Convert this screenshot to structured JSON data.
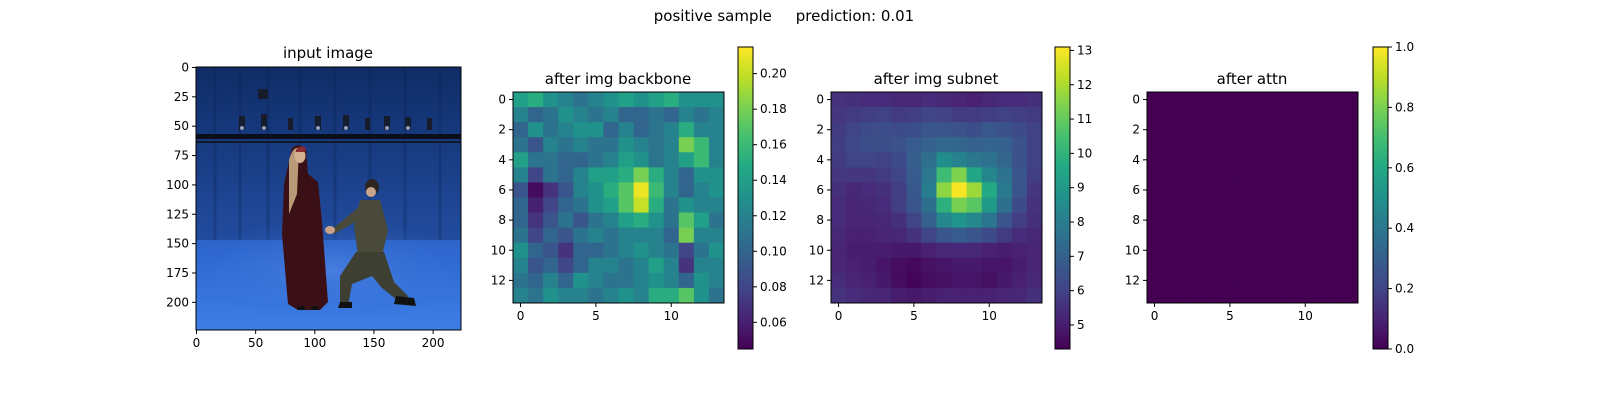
{
  "suptitle": "positive sample     prediction: 0.01",
  "colors": {
    "background": "#ffffff",
    "colormap": "viridis",
    "photo_studio_backdrop": "#1c3f8c",
    "photo_floor": "#2f6ed8"
  },
  "chart_data": [
    {
      "type": "image",
      "title": "input image",
      "image_description_icon": "photo-two-people-proposal",
      "xlim": [
        0,
        224
      ],
      "ylim": [
        224,
        0
      ],
      "xticks": [
        0,
        50,
        100,
        150,
        200
      ],
      "yticks": [
        0,
        25,
        50,
        75,
        100,
        125,
        150,
        175,
        200
      ]
    },
    {
      "type": "heatmap",
      "title": "after img backbone",
      "colormap": "viridis",
      "xticks": [
        0,
        5,
        10
      ],
      "yticks": [
        0,
        2,
        4,
        6,
        8,
        10,
        12
      ],
      "colorbar": {
        "range": [
          0.045,
          0.215
        ],
        "ticks": [
          0.06,
          0.08,
          0.1,
          0.12,
          0.14,
          0.16,
          0.18,
          0.2
        ],
        "labels": [
          "0.06",
          "0.08",
          "0.10",
          "0.12",
          "0.14",
          "0.16",
          "0.18",
          "0.20"
        ]
      },
      "values": [
        [
          0.14,
          0.15,
          0.13,
          0.12,
          0.11,
          0.12,
          0.13,
          0.14,
          0.13,
          0.14,
          0.15,
          0.13,
          0.13,
          0.13
        ],
        [
          0.12,
          0.1,
          0.11,
          0.13,
          0.12,
          0.11,
          0.12,
          0.1,
          0.1,
          0.11,
          0.1,
          0.12,
          0.11,
          0.12
        ],
        [
          0.1,
          0.13,
          0.11,
          0.12,
          0.13,
          0.13,
          0.1,
          0.12,
          0.1,
          0.11,
          0.12,
          0.15,
          0.12,
          0.12
        ],
        [
          0.11,
          0.09,
          0.12,
          0.11,
          0.12,
          0.11,
          0.11,
          0.13,
          0.12,
          0.11,
          0.12,
          0.18,
          0.16,
          0.12
        ],
        [
          0.14,
          0.11,
          0.11,
          0.1,
          0.1,
          0.11,
          0.12,
          0.14,
          0.13,
          0.11,
          0.12,
          0.14,
          0.16,
          0.12
        ],
        [
          0.12,
          0.08,
          0.11,
          0.1,
          0.12,
          0.14,
          0.14,
          0.15,
          0.18,
          0.15,
          0.12,
          0.1,
          0.13,
          0.13
        ],
        [
          0.09,
          0.05,
          0.07,
          0.09,
          0.12,
          0.13,
          0.15,
          0.17,
          0.21,
          0.16,
          0.12,
          0.1,
          0.12,
          0.13
        ],
        [
          0.1,
          0.06,
          0.08,
          0.1,
          0.11,
          0.13,
          0.14,
          0.17,
          0.2,
          0.15,
          0.11,
          0.13,
          0.12,
          0.12
        ],
        [
          0.1,
          0.07,
          0.09,
          0.11,
          0.09,
          0.11,
          0.12,
          0.14,
          0.15,
          0.13,
          0.11,
          0.17,
          0.14,
          0.11
        ],
        [
          0.11,
          0.08,
          0.1,
          0.09,
          0.11,
          0.12,
          0.11,
          0.12,
          0.12,
          0.12,
          0.1,
          0.18,
          0.12,
          0.12
        ],
        [
          0.13,
          0.1,
          0.09,
          0.07,
          0.1,
          0.1,
          0.11,
          0.12,
          0.13,
          0.12,
          0.11,
          0.08,
          0.11,
          0.13
        ],
        [
          0.12,
          0.09,
          0.1,
          0.08,
          0.1,
          0.12,
          0.12,
          0.11,
          0.12,
          0.14,
          0.12,
          0.07,
          0.12,
          0.12
        ],
        [
          0.11,
          0.1,
          0.12,
          0.1,
          0.13,
          0.12,
          0.11,
          0.11,
          0.12,
          0.13,
          0.12,
          0.1,
          0.13,
          0.12
        ],
        [
          0.12,
          0.11,
          0.13,
          0.12,
          0.12,
          0.11,
          0.12,
          0.13,
          0.12,
          0.15,
          0.15,
          0.17,
          0.13,
          0.11
        ]
      ]
    },
    {
      "type": "heatmap",
      "title": "after img subnet",
      "colormap": "viridis",
      "xticks": [
        0,
        5,
        10
      ],
      "yticks": [
        0,
        2,
        4,
        6,
        8,
        10,
        12
      ],
      "colorbar": {
        "range": [
          4.3,
          13.1
        ],
        "ticks": [
          5,
          6,
          7,
          8,
          9,
          10,
          11,
          12,
          13
        ],
        "labels": [
          "5",
          "6",
          "7",
          "8",
          "9",
          "10",
          "11",
          "12",
          "13"
        ]
      },
      "values": [
        [
          5.6,
          5.5,
          5.4,
          5.4,
          5.3,
          5.3,
          5.4,
          5.3,
          5.2,
          5.1,
          5.3,
          5.4,
          5.4,
          5.5
        ],
        [
          5.7,
          5.8,
          5.9,
          6.0,
          5.8,
          5.9,
          6.1,
          6.0,
          5.8,
          5.8,
          5.9,
          6.0,
          5.9,
          5.8
        ],
        [
          5.8,
          6.1,
          6.3,
          6.4,
          6.3,
          6.4,
          6.6,
          6.6,
          6.5,
          6.4,
          6.7,
          6.5,
          6.3,
          6.0
        ],
        [
          5.9,
          6.2,
          6.4,
          6.4,
          6.5,
          6.8,
          7.0,
          7.3,
          7.2,
          7.0,
          7.1,
          7.0,
          6.5,
          6.0
        ],
        [
          5.8,
          6.1,
          6.1,
          6.0,
          6.3,
          6.9,
          7.5,
          8.6,
          8.2,
          7.8,
          7.6,
          7.2,
          6.5,
          6.0
        ],
        [
          5.7,
          5.7,
          5.7,
          5.8,
          6.1,
          6.8,
          7.8,
          10.3,
          11.4,
          9.5,
          8.3,
          7.6,
          6.6,
          5.9
        ],
        [
          5.5,
          5.3,
          5.4,
          5.5,
          5.9,
          6.7,
          8.0,
          11.6,
          13.0,
          11.8,
          9.6,
          7.9,
          6.6,
          5.7
        ],
        [
          5.4,
          5.2,
          5.3,
          5.4,
          5.9,
          6.6,
          7.5,
          9.9,
          11.3,
          10.8,
          9.0,
          7.5,
          6.3,
          5.6
        ],
        [
          5.4,
          5.2,
          5.2,
          5.3,
          5.5,
          6.1,
          7.0,
          8.3,
          8.8,
          8.4,
          7.7,
          6.6,
          5.9,
          5.5
        ],
        [
          5.3,
          5.1,
          5.1,
          5.2,
          5.3,
          5.6,
          6.1,
          6.6,
          6.8,
          6.6,
          6.3,
          5.8,
          5.4,
          5.3
        ],
        [
          5.2,
          5.0,
          5.0,
          5.0,
          4.9,
          4.9,
          5.1,
          5.3,
          5.3,
          5.3,
          5.1,
          5.0,
          5.1,
          5.2
        ],
        [
          5.2,
          5.1,
          5.0,
          4.8,
          4.6,
          4.5,
          4.7,
          4.8,
          4.9,
          4.9,
          4.8,
          4.8,
          5.0,
          5.2
        ],
        [
          5.4,
          5.2,
          5.1,
          4.9,
          4.6,
          4.4,
          4.6,
          4.7,
          4.8,
          4.8,
          4.7,
          4.9,
          5.1,
          5.3
        ],
        [
          5.6,
          5.4,
          5.3,
          5.2,
          5.0,
          4.9,
          5.0,
          5.1,
          5.1,
          5.1,
          5.1,
          5.2,
          5.3,
          5.5
        ]
      ]
    },
    {
      "type": "heatmap",
      "title": "after attn",
      "colormap": "viridis",
      "xticks": [
        0,
        5,
        10
      ],
      "yticks": [
        0,
        2,
        4,
        6,
        8,
        10,
        12
      ],
      "colorbar": {
        "range": [
          0,
          1
        ],
        "ticks": [
          0.0,
          0.2,
          0.4,
          0.6,
          0.8,
          1.0
        ],
        "labels": [
          "0.0",
          "0.2",
          "0.4",
          "0.6",
          "0.8",
          "1.0"
        ]
      },
      "fill_value": 0.0,
      "values": []
    }
  ]
}
